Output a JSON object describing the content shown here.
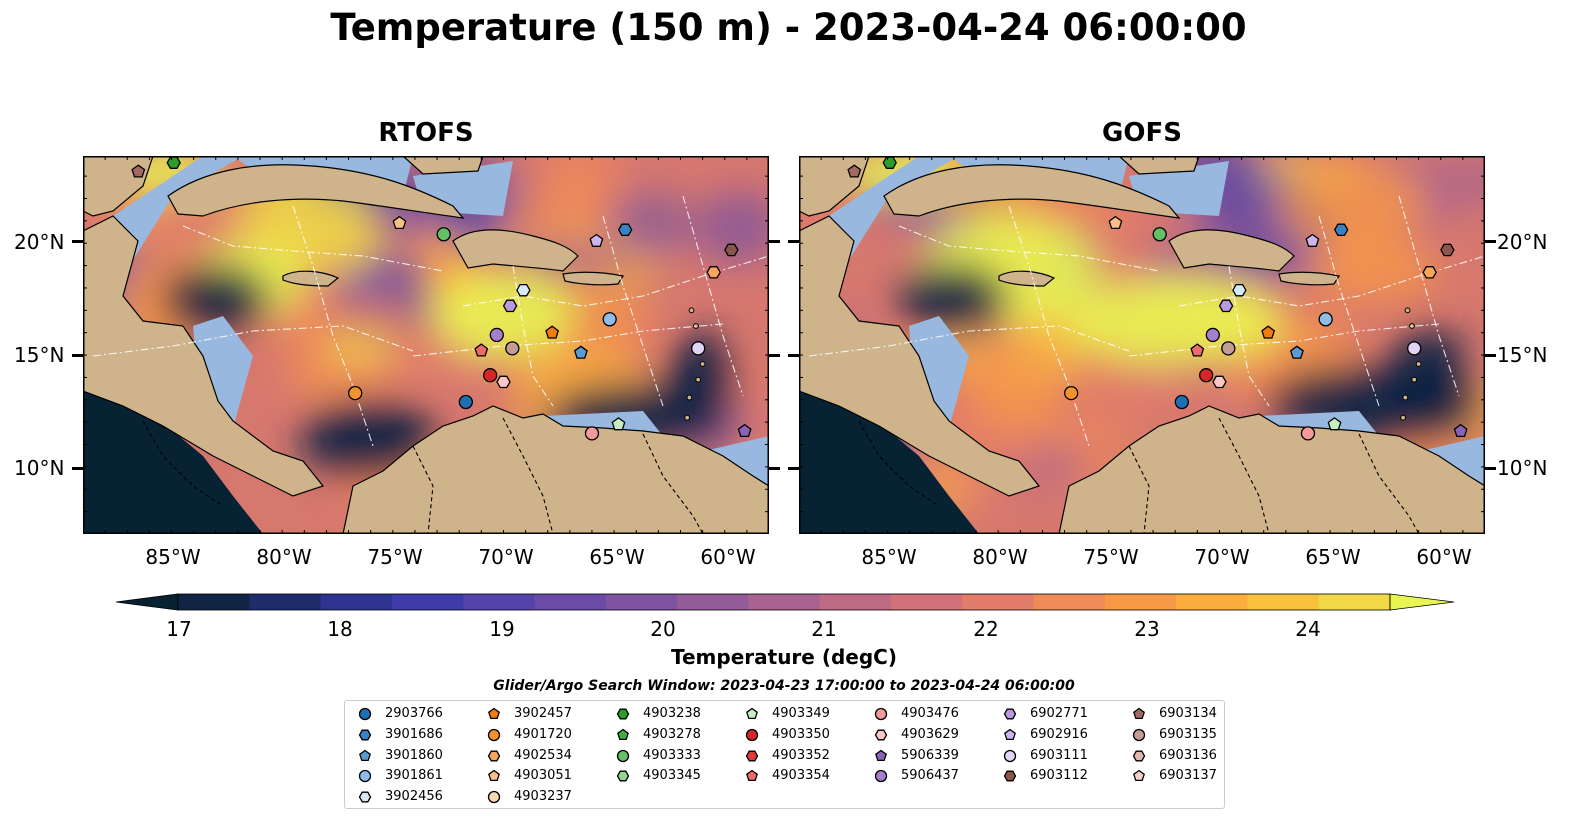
{
  "title": "Temperature (150 m) - 2023-04-24 06:00:00",
  "panels": [
    {
      "title": "RTOFS"
    },
    {
      "title": "GOFS"
    }
  ],
  "lat_labels": [
    "20°N",
    "15°N",
    "10°N"
  ],
  "lon_labels": [
    "85°W",
    "80°W",
    "75°W",
    "70°W",
    "65°W",
    "60°W"
  ],
  "colorbar": {
    "label": "Temperature (degC)",
    "ticks": [
      "17",
      "18",
      "19",
      "20",
      "21",
      "22",
      "23",
      "24"
    ],
    "range": [
      16.5,
      24.5
    ],
    "colors": [
      "#072333",
      "#102443",
      "#1d2c6b",
      "#2d3591",
      "#3f3ba8",
      "#5443aa",
      "#6a4ba6",
      "#7e539f",
      "#935b97",
      "#a8638f",
      "#bd6a84",
      "#d17279",
      "#e27c6b",
      "#f08a58",
      "#f89a45",
      "#fbad3d",
      "#f8c23e",
      "#f0d847",
      "#e9f552"
    ]
  },
  "legend": {
    "title": "Glider/Argo Search Window: 2023-04-23 17:00:00 to 2023-04-24 06:00:00",
    "columns": [
      [
        {
          "id": "2903766",
          "shape": "circle",
          "color": "#1f6fb4"
        },
        {
          "id": "3901686",
          "shape": "hexagon",
          "color": "#3b82c4"
        },
        {
          "id": "3901860",
          "shape": "pentagon",
          "color": "#5b9bd5"
        },
        {
          "id": "3901861",
          "shape": "circle",
          "color": "#8fbde6"
        },
        {
          "id": "3902456",
          "shape": "hexagon",
          "color": "#d6e9f8"
        }
      ],
      [
        {
          "id": "3902457",
          "shape": "pentagon",
          "color": "#f07d12"
        },
        {
          "id": "4901720",
          "shape": "circle",
          "color": "#f4922e"
        },
        {
          "id": "4902534",
          "shape": "hexagon",
          "color": "#f7a75a"
        },
        {
          "id": "4903051",
          "shape": "pentagon",
          "color": "#f9bf85"
        },
        {
          "id": "4903237",
          "shape": "circle",
          "color": "#fbd7b0"
        }
      ],
      [
        {
          "id": "4903238",
          "shape": "hexagon",
          "color": "#2a9d2a"
        },
        {
          "id": "4903278",
          "shape": "pentagon",
          "color": "#3fae3f"
        },
        {
          "id": "4903333",
          "shape": "circle",
          "color": "#63c063"
        },
        {
          "id": "4903345",
          "shape": "hexagon",
          "color": "#94d694"
        }
      ],
      [
        {
          "id": "4903349",
          "shape": "pentagon",
          "color": "#c5edc0"
        },
        {
          "id": "4903350",
          "shape": "circle",
          "color": "#d62728"
        },
        {
          "id": "4903352",
          "shape": "hexagon",
          "color": "#e03a3a"
        },
        {
          "id": "4903354",
          "shape": "pentagon",
          "color": "#ec6b6b"
        }
      ],
      [
        {
          "id": "4903476",
          "shape": "circle",
          "color": "#f59a9a"
        },
        {
          "id": "4903629",
          "shape": "hexagon",
          "color": "#fbc6c6"
        },
        {
          "id": "5906339",
          "shape": "pentagon",
          "color": "#8a62b8"
        },
        {
          "id": "5906437",
          "shape": "circle",
          "color": "#a47fcc"
        }
      ],
      [
        {
          "id": "6902771",
          "shape": "hexagon",
          "color": "#b99ae0"
        },
        {
          "id": "6902916",
          "shape": "pentagon",
          "color": "#cdb6ee"
        },
        {
          "id": "6903111",
          "shape": "circle",
          "color": "#e2d4f6"
        },
        {
          "id": "6903112",
          "shape": "hexagon",
          "color": "#8c564b"
        }
      ],
      [
        {
          "id": "6903134",
          "shape": "pentagon",
          "color": "#a06a60"
        },
        {
          "id": "6903135",
          "shape": "circle",
          "color": "#c49c94"
        },
        {
          "id": "6903136",
          "shape": "hexagon",
          "color": "#e0b8ae"
        },
        {
          "id": "6903137",
          "shape": "pentagon",
          "color": "#f2d2ca"
        }
      ]
    ]
  },
  "floats": [
    {
      "id": "2903766",
      "lon": -71.7,
      "lat": 12.9,
      "shape": "circle",
      "color": "#1f6fb4"
    },
    {
      "id": "3901686",
      "lon": -64.5,
      "lat": 20.6,
      "shape": "hexagon",
      "color": "#3b82c4"
    },
    {
      "id": "3901860",
      "lon": -66.5,
      "lat": 15.1,
      "shape": "pentagon",
      "color": "#5b9bd5"
    },
    {
      "id": "3901861",
      "lon": -65.2,
      "lat": 16.6,
      "shape": "circle",
      "color": "#8fbde6"
    },
    {
      "id": "3902456",
      "lon": -69.1,
      "lat": 17.9,
      "shape": "hexagon",
      "color": "#d6e9f8"
    },
    {
      "id": "3902457",
      "lon": -67.8,
      "lat": 16.0,
      "shape": "pentagon",
      "color": "#f07d12"
    },
    {
      "id": "4901720",
      "lon": -76.7,
      "lat": 13.3,
      "shape": "circle",
      "color": "#f4922e"
    },
    {
      "id": "4902534",
      "lon": -60.5,
      "lat": 18.7,
      "shape": "hexagon",
      "color": "#f7a75a"
    },
    {
      "id": "4903051",
      "lon": -74.7,
      "lat": 20.9,
      "shape": "pentagon",
      "color": "#f9bf85"
    },
    {
      "id": "4903238",
      "lon": -84.9,
      "lat": 23.6,
      "shape": "hexagon",
      "color": "#2a9d2a"
    },
    {
      "id": "4903333",
      "lon": -72.7,
      "lat": 20.4,
      "shape": "circle",
      "color": "#63c063"
    },
    {
      "id": "4903349",
      "lon": -64.8,
      "lat": 11.9,
      "shape": "pentagon",
      "color": "#c5edc0"
    },
    {
      "id": "4903350",
      "lon": -70.6,
      "lat": 14.1,
      "shape": "circle",
      "color": "#d62728"
    },
    {
      "id": "4903354",
      "lon": -71.0,
      "lat": 15.2,
      "shape": "pentagon",
      "color": "#ec6b6b"
    },
    {
      "id": "4903476",
      "lon": -66.0,
      "lat": 11.5,
      "shape": "circle",
      "color": "#f59a9a"
    },
    {
      "id": "4903629",
      "lon": -70.0,
      "lat": 13.8,
      "shape": "hexagon",
      "color": "#fbc6c6"
    },
    {
      "id": "5906339",
      "lon": -59.1,
      "lat": 11.6,
      "shape": "pentagon",
      "color": "#8a62b8"
    },
    {
      "id": "5906437",
      "lon": -70.3,
      "lat": 15.9,
      "shape": "circle",
      "color": "#a47fcc"
    },
    {
      "id": "6902771",
      "lon": -69.7,
      "lat": 17.2,
      "shape": "hexagon",
      "color": "#b99ae0"
    },
    {
      "id": "6902916",
      "lon": -65.8,
      "lat": 20.1,
      "shape": "pentagon",
      "color": "#cdb6ee"
    },
    {
      "id": "6903111",
      "lon": -61.2,
      "lat": 15.3,
      "shape": "circle",
      "color": "#e2d4f6"
    },
    {
      "id": "6903112",
      "lon": -59.7,
      "lat": 19.7,
      "shape": "hexagon",
      "color": "#8c564b"
    },
    {
      "id": "6903134",
      "lon": -86.5,
      "lat": 23.2,
      "shape": "pentagon",
      "color": "#a06a60"
    },
    {
      "id": "6903135",
      "lon": -69.6,
      "lat": 15.3,
      "shape": "circle",
      "color": "#c49c94"
    }
  ]
}
